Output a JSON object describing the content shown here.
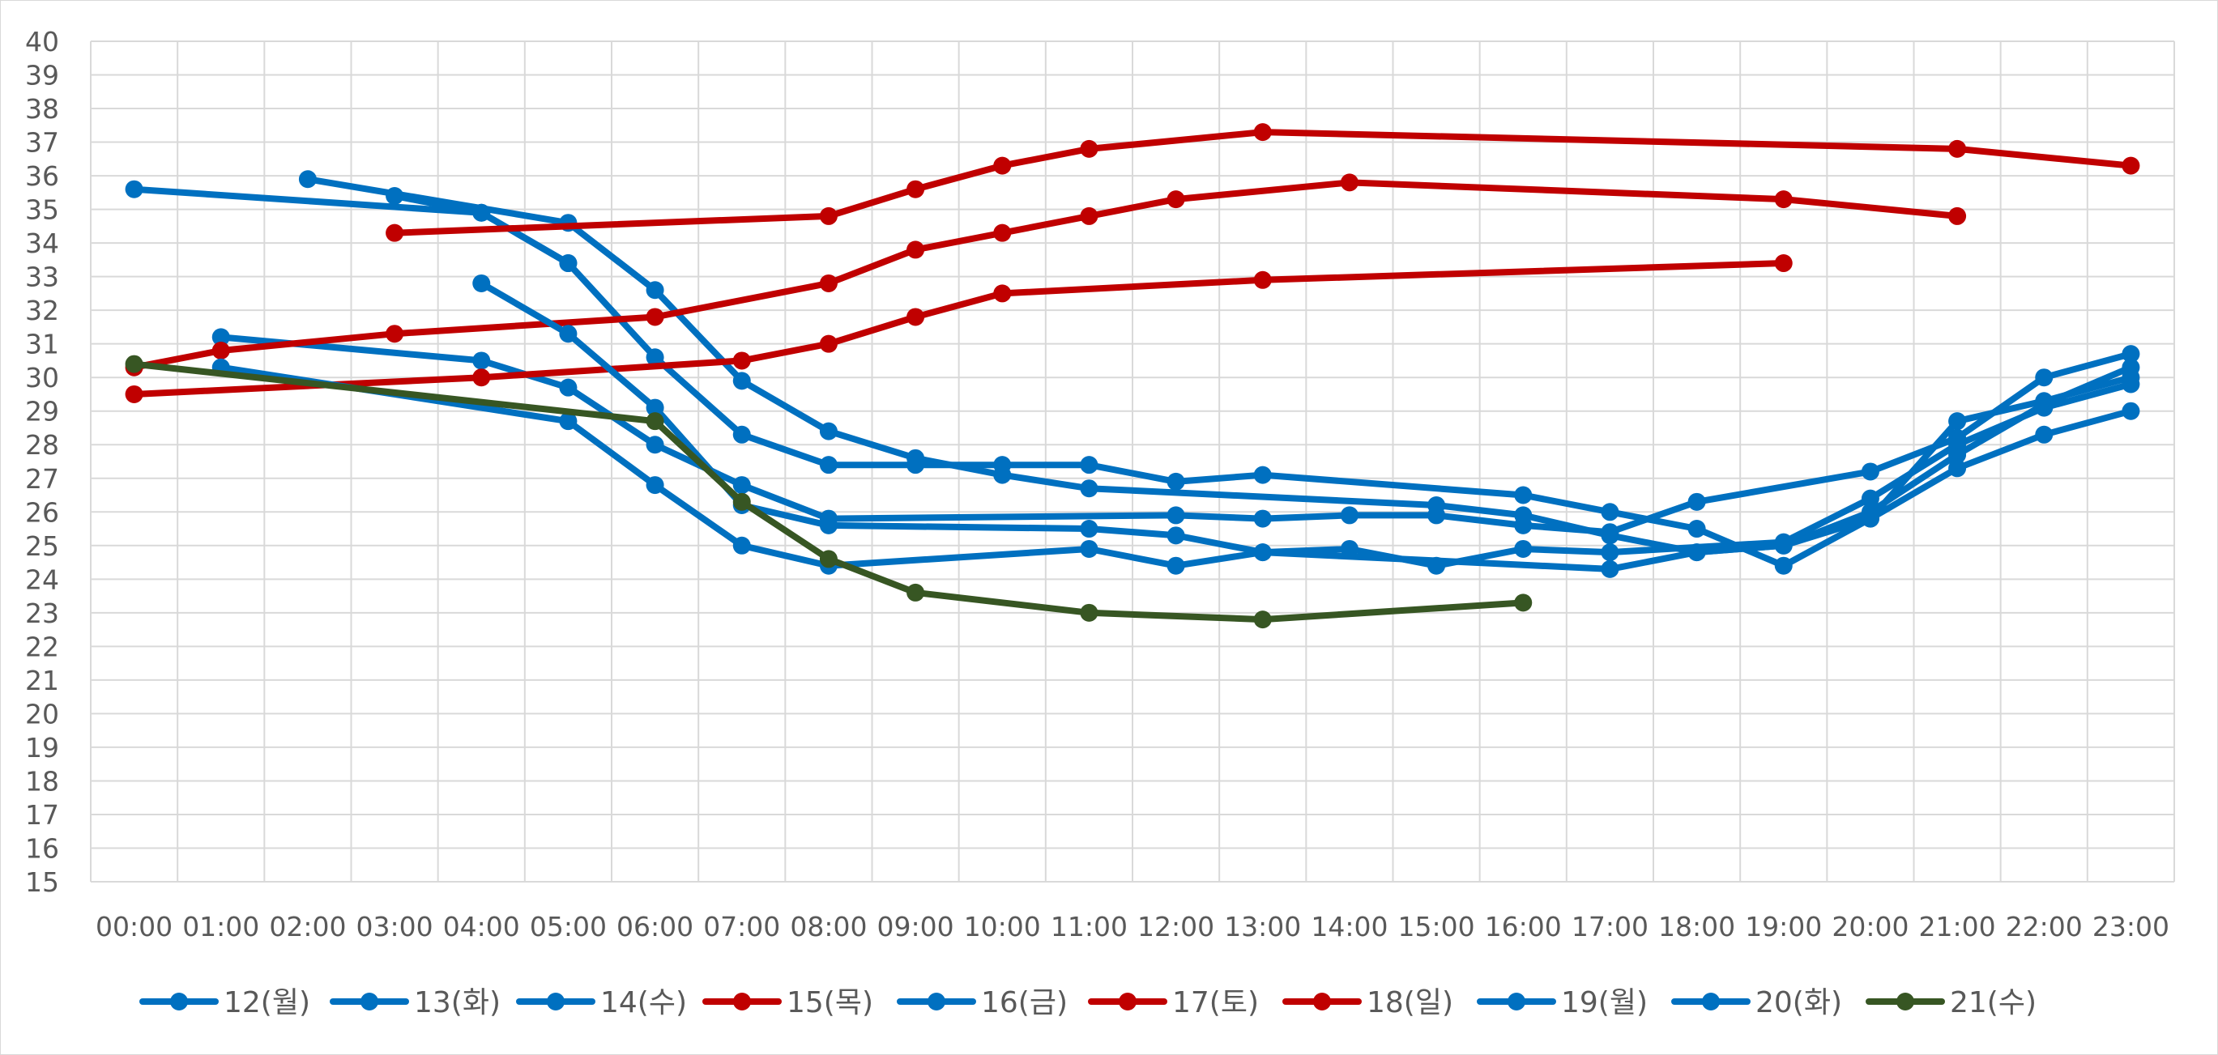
{
  "chart_data": {
    "type": "line",
    "categories": [
      "00:00",
      "01:00",
      "02:00",
      "03:00",
      "04:00",
      "05:00",
      "06:00",
      "07:00",
      "08:00",
      "09:00",
      "10:00",
      "11:00",
      "12:00",
      "13:00",
      "14:00",
      "15:00",
      "16:00",
      "17:00",
      "18:00",
      "19:00",
      "20:00",
      "21:00",
      "22:00",
      "23:00"
    ],
    "ylim": [
      15,
      40
    ],
    "ytick_step": 1,
    "grid": true,
    "legend": "bottom",
    "series": [
      {
        "name": "12(월)",
        "color": "#0070C0",
        "points": [
          [
            3.0,
            35.4
          ],
          [
            4.0,
            34.9
          ],
          [
            5.0,
            33.4
          ],
          [
            6.0,
            30.6
          ],
          [
            7.0,
            28.3
          ],
          [
            8.0,
            27.4
          ],
          [
            9.0,
            27.4
          ],
          [
            10.0,
            27.4
          ],
          [
            11.0,
            27.4
          ],
          [
            12.0,
            26.9
          ],
          [
            13.0,
            27.1
          ],
          [
            16.0,
            26.5
          ],
          [
            17.0,
            26.0
          ],
          [
            18.0,
            25.5
          ],
          [
            19.0,
            24.4
          ],
          [
            20.0,
            25.8
          ],
          [
            21.0,
            27.3
          ],
          [
            22.0,
            28.3
          ],
          [
            23.0,
            29.0
          ]
        ]
      },
      {
        "name": "13(화)",
        "color": "#0070C0",
        "points": [
          [
            2.0,
            35.9
          ],
          [
            5.0,
            34.6
          ],
          [
            6.0,
            32.6
          ],
          [
            7.0,
            29.9
          ],
          [
            8.0,
            28.4
          ],
          [
            9.0,
            27.6
          ],
          [
            10.0,
            27.1
          ],
          [
            11.0,
            26.7
          ],
          [
            15.0,
            26.2
          ],
          [
            16.0,
            25.9
          ],
          [
            17.0,
            25.3
          ],
          [
            18.0,
            24.8
          ],
          [
            19.0,
            25.0
          ],
          [
            20.0,
            26.0
          ],
          [
            21.0,
            27.7
          ],
          [
            22.0,
            29.2
          ],
          [
            23.0,
            30.3
          ]
        ]
      },
      {
        "name": "14(수)",
        "color": "#0070C0",
        "points": [
          [
            0.0,
            35.6
          ],
          [
            4.0,
            34.9
          ],
          [
            5.0,
            33.4
          ]
        ]
      },
      {
        "name": "15(목)",
        "color": "#C00000",
        "points": [
          [
            3.0,
            34.3
          ],
          [
            8.0,
            34.8
          ],
          [
            9.0,
            35.6
          ],
          [
            10.0,
            36.3
          ],
          [
            11.0,
            36.8
          ],
          [
            13.0,
            37.3
          ],
          [
            21.0,
            36.8
          ],
          [
            23.0,
            36.3
          ]
        ]
      },
      {
        "name": "16(금)",
        "color": "#0070C0",
        "points": [
          [
            1.0,
            31.2
          ],
          [
            4.0,
            30.5
          ],
          [
            5.0,
            29.7
          ],
          [
            6.0,
            28.0
          ],
          [
            7.0,
            26.8
          ],
          [
            8.0,
            25.8
          ],
          [
            12.0,
            25.9
          ],
          [
            13.0,
            25.8
          ],
          [
            14.0,
            25.9
          ],
          [
            15.0,
            25.9
          ],
          [
            16.0,
            25.6
          ],
          [
            17.0,
            25.4
          ],
          [
            18.0,
            26.3
          ],
          [
            20.0,
            27.2
          ],
          [
            21.0,
            28.2
          ],
          [
            22.0,
            30.0
          ],
          [
            23.0,
            30.7
          ]
        ]
      },
      {
        "name": "17(토)",
        "color": "#C00000",
        "points": [
          [
            0.0,
            30.3
          ],
          [
            1.0,
            30.8
          ],
          [
            3.0,
            31.3
          ],
          [
            6.0,
            31.8
          ],
          [
            8.0,
            32.8
          ],
          [
            9.0,
            33.8
          ],
          [
            10.0,
            34.3
          ],
          [
            11.0,
            34.8
          ],
          [
            12.0,
            35.3
          ],
          [
            14.0,
            35.8
          ],
          [
            19.0,
            35.3
          ],
          [
            21.0,
            34.8
          ]
        ]
      },
      {
        "name": "18(일)",
        "color": "#C00000",
        "points": [
          [
            0.0,
            29.5
          ],
          [
            4.0,
            30.0
          ],
          [
            7.0,
            30.5
          ],
          [
            8.0,
            31.0
          ],
          [
            9.0,
            31.8
          ],
          [
            10.0,
            32.5
          ],
          [
            13.0,
            32.9
          ],
          [
            19.0,
            33.4
          ]
        ]
      },
      {
        "name": "19(월)",
        "color": "#0070C0",
        "points": [
          [
            4.0,
            32.8
          ],
          [
            5.0,
            31.3
          ],
          [
            6.0,
            29.1
          ],
          [
            7.0,
            26.2
          ],
          [
            8.0,
            25.6
          ],
          [
            11.0,
            25.5
          ],
          [
            12.0,
            25.3
          ],
          [
            13.0,
            24.8
          ],
          [
            14.0,
            24.9
          ],
          [
            15.0,
            24.4
          ],
          [
            16.0,
            24.9
          ],
          [
            17.0,
            24.8
          ],
          [
            19.0,
            25.1
          ],
          [
            20.0,
            26.4
          ],
          [
            21.0,
            28.0
          ],
          [
            22.0,
            29.1
          ],
          [
            23.0,
            29.8
          ]
        ]
      },
      {
        "name": "20(화)",
        "color": "#0070C0",
        "points": [
          [
            1.0,
            30.3
          ],
          [
            5.0,
            28.7
          ],
          [
            6.0,
            26.8
          ],
          [
            7.0,
            25.0
          ],
          [
            8.0,
            24.4
          ],
          [
            11.0,
            24.9
          ],
          [
            12.0,
            24.4
          ],
          [
            13.0,
            24.8
          ],
          [
            17.0,
            24.3
          ],
          [
            18.0,
            24.8
          ],
          [
            19.0,
            25.0
          ],
          [
            20.0,
            25.8
          ],
          [
            21.0,
            28.7
          ],
          [
            22.0,
            29.3
          ],
          [
            23.0,
            30.0
          ]
        ]
      },
      {
        "name": "21(수)",
        "color": "#375623",
        "points": [
          [
            0.0,
            30.4
          ],
          [
            6.0,
            28.7
          ],
          [
            7.0,
            26.3
          ],
          [
            8.0,
            24.6
          ],
          [
            9.0,
            23.6
          ],
          [
            11.0,
            23.0
          ],
          [
            13.0,
            22.8
          ],
          [
            16.0,
            23.3
          ]
        ]
      }
    ]
  }
}
